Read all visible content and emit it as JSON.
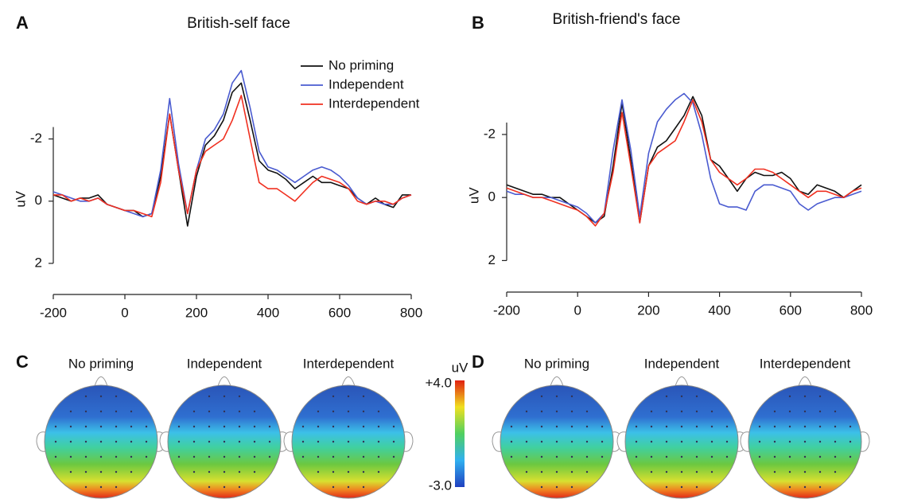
{
  "chart_data": [
    {
      "type": "line",
      "panel": "A",
      "title": "British-self face",
      "ylabel": "uV",
      "x": [
        -200,
        -175,
        -150,
        -125,
        -100,
        -75,
        -50,
        -25,
        0,
        25,
        50,
        75,
        100,
        125,
        150,
        175,
        200,
        225,
        250,
        275,
        300,
        325,
        350,
        375,
        400,
        425,
        450,
        475,
        500,
        525,
        550,
        575,
        600,
        625,
        650,
        675,
        700,
        725,
        750,
        775,
        800
      ],
      "xlim": [
        -200,
        800
      ],
      "xticks": [
        -200,
        0,
        200,
        400,
        600,
        800
      ],
      "ylim": [
        -4.6,
        3
      ],
      "yticks": [
        -2,
        0,
        2
      ],
      "y_inverted": true,
      "legend": "upper right",
      "series": [
        {
          "name": "No priming",
          "color": "#111111",
          "values": [
            -0.2,
            -0.1,
            0,
            -0.1,
            -0.1,
            -0.2,
            0.1,
            0.2,
            0.3,
            0.3,
            0.5,
            0.4,
            -0.8,
            -2.8,
            -1.0,
            0.8,
            -0.8,
            -1.8,
            -2.1,
            -2.6,
            -3.5,
            -3.8,
            -2.6,
            -1.3,
            -1.0,
            -0.9,
            -0.7,
            -0.4,
            -0.6,
            -0.8,
            -0.6,
            -0.6,
            -0.5,
            -0.4,
            -0.1,
            0.1,
            -0.1,
            0.1,
            0.2,
            -0.2,
            -0.2
          ]
        },
        {
          "name": "Independent",
          "color": "#4a5bd0",
          "values": [
            -0.3,
            -0.2,
            -0.1,
            0,
            0,
            -0.1,
            0.1,
            0.2,
            0.3,
            0.4,
            0.5,
            0.4,
            -1.0,
            -3.3,
            -1.2,
            0.4,
            -1.0,
            -2.0,
            -2.3,
            -2.8,
            -3.8,
            -4.2,
            -3.0,
            -1.6,
            -1.1,
            -1.0,
            -0.8,
            -0.6,
            -0.8,
            -1.0,
            -1.1,
            -1.0,
            -0.8,
            -0.5,
            -0.1,
            0.1,
            0,
            0.1,
            0.1,
            -0.1,
            -0.2
          ]
        },
        {
          "name": "Interdependent",
          "color": "#f03020",
          "values": [
            -0.2,
            -0.2,
            0,
            -0.1,
            0,
            -0.1,
            0.1,
            0.2,
            0.3,
            0.3,
            0.4,
            0.5,
            -0.6,
            -2.8,
            -1.0,
            0.4,
            -1.0,
            -1.6,
            -1.8,
            -2.0,
            -2.6,
            -3.4,
            -2.0,
            -0.6,
            -0.4,
            -0.4,
            -0.2,
            0,
            -0.3,
            -0.6,
            -0.8,
            -0.7,
            -0.6,
            -0.4,
            0,
            0.1,
            0,
            0,
            0.1,
            -0.1,
            -0.2
          ]
        }
      ]
    },
    {
      "type": "line",
      "panel": "B",
      "title": "British-friend's face",
      "ylabel": "uV",
      "x": [
        -200,
        -175,
        -150,
        -125,
        -100,
        -75,
        -50,
        -25,
        0,
        25,
        50,
        75,
        100,
        125,
        150,
        175,
        200,
        225,
        250,
        275,
        300,
        325,
        350,
        375,
        400,
        425,
        450,
        475,
        500,
        525,
        550,
        575,
        600,
        625,
        650,
        675,
        700,
        725,
        750,
        775,
        800
      ],
      "xlim": [
        -200,
        800
      ],
      "xticks": [
        -200,
        0,
        200,
        400,
        600,
        800
      ],
      "ylim": [
        -4.6,
        3
      ],
      "yticks": [
        -2,
        0,
        2
      ],
      "y_inverted": true,
      "legend": false,
      "series": [
        {
          "color": "#111111",
          "values": [
            -0.4,
            -0.3,
            -0.2,
            -0.1,
            -0.1,
            0,
            0,
            0.2,
            0.4,
            0.6,
            0.8,
            0.6,
            -1.0,
            -3.0,
            -1.2,
            0.8,
            -1.0,
            -1.6,
            -1.8,
            -2.2,
            -2.6,
            -3.2,
            -2.6,
            -1.2,
            -1.0,
            -0.6,
            -0.2,
            -0.6,
            -0.8,
            -0.7,
            -0.7,
            -0.8,
            -0.6,
            -0.2,
            -0.1,
            -0.4,
            -0.3,
            -0.2,
            0,
            -0.2,
            -0.4
          ]
        },
        {
          "color": "#4a5bd0",
          "values": [
            -0.2,
            -0.1,
            -0.1,
            0,
            0,
            0,
            0.1,
            0.2,
            0.3,
            0.5,
            0.8,
            0.5,
            -1.5,
            -3.1,
            -1.5,
            0.6,
            -1.4,
            -2.4,
            -2.8,
            -3.1,
            -3.3,
            -3.0,
            -2.0,
            -0.6,
            0.2,
            0.3,
            0.3,
            0.4,
            -0.2,
            -0.4,
            -0.4,
            -0.3,
            -0.2,
            0.2,
            0.4,
            0.2,
            0.1,
            0,
            0,
            -0.1,
            -0.2
          ]
        },
        {
          "color": "#f03020",
          "values": [
            -0.3,
            -0.2,
            -0.1,
            0,
            0,
            0.1,
            0.2,
            0.3,
            0.4,
            0.6,
            0.9,
            0.5,
            -0.8,
            -2.7,
            -1.0,
            0.8,
            -1.0,
            -1.4,
            -1.6,
            -1.8,
            -2.4,
            -3.1,
            -2.4,
            -1.2,
            -0.8,
            -0.6,
            -0.4,
            -0.6,
            -0.9,
            -0.9,
            -0.8,
            -0.6,
            -0.4,
            -0.2,
            0,
            -0.2,
            -0.2,
            -0.1,
            0,
            -0.2,
            -0.3
          ]
        }
      ]
    }
  ],
  "topomaps": [
    {
      "panel": "C",
      "titles": [
        "No priming",
        "Independent",
        "Interdependent"
      ]
    },
    {
      "panel": "D",
      "titles": [
        "No priming",
        "Independent",
        "Interdependent"
      ]
    }
  ],
  "colorbar": {
    "label": "uV",
    "max_label": "+4.0",
    "min_label": "-3.0"
  }
}
